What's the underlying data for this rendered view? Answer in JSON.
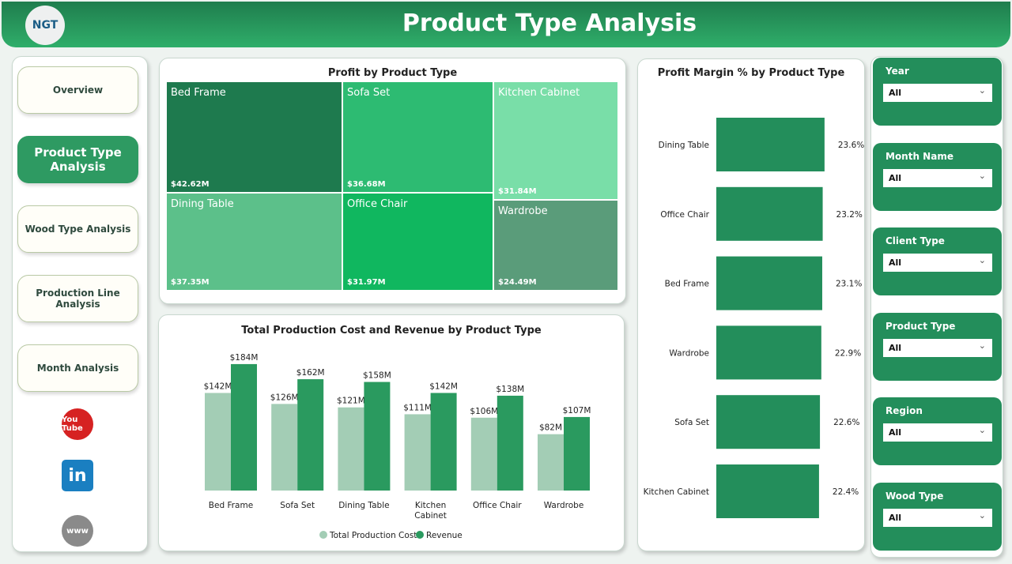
{
  "header": {
    "title": "Product Type Analysis",
    "logo_text": "NGT"
  },
  "nav": [
    {
      "label": "Overview"
    },
    {
      "label": "Product Type Analysis",
      "active": true
    },
    {
      "label": "Wood Type Analysis"
    },
    {
      "label": "Production Line Analysis"
    },
    {
      "label": "Month Analysis"
    }
  ],
  "social": [
    {
      "icon": "youtube-icon",
      "label": "You Tube"
    },
    {
      "icon": "linkedin-icon",
      "label": "in"
    },
    {
      "icon": "www-icon",
      "label": "www"
    }
  ],
  "treemap": {
    "title": "Profit by Product Type",
    "tiles": [
      {
        "name": "Bed Frame",
        "value": "$42.62M",
        "color": "#1e7a4e"
      },
      {
        "name": "Dining Table",
        "value": "$37.35M",
        "color": "#5cc08a"
      },
      {
        "name": "Sofa Set",
        "value": "$36.68M",
        "color": "#2dbb72"
      },
      {
        "name": "Office Chair",
        "value": "$31.97M",
        "color": "#10b75f"
      },
      {
        "name": "Kitchen Cabinet",
        "value": "$31.84M",
        "color": "#79dea8"
      },
      {
        "name": "Wardrobe",
        "value": "$24.49M",
        "color": "#5a9c7a"
      }
    ]
  },
  "chart_data": [
    {
      "type": "bar",
      "title": "Total Production Cost and Revenue by Product Type",
      "categories": [
        "Bed Frame",
        "Sofa Set",
        "Dining Table",
        "Kitchen Cabinet",
        "Office Chair",
        "Wardrobe"
      ],
      "series": [
        {
          "name": "Total Production Cost",
          "values": [
            142,
            126,
            121,
            111,
            106,
            82
          ],
          "labels": [
            "$142M",
            "$126M",
            "$121M",
            "$111M",
            "$106M",
            "$82M"
          ],
          "color": "#a3cdb5"
        },
        {
          "name": "Revenue",
          "values": [
            184,
            162,
            158,
            142,
            138,
            107
          ],
          "labels": [
            "$184M",
            "$162M",
            "$158M",
            "$142M",
            "$138M",
            "$107M"
          ],
          "color": "#2a9a5f"
        }
      ],
      "legend": "bottom",
      "ylim": [
        0,
        200
      ]
    },
    {
      "type": "bar",
      "orientation": "horizontal",
      "title": "Profit Margin % by Product Type",
      "categories": [
        "Dining Table",
        "Office Chair",
        "Bed Frame",
        "Wardrobe",
        "Sofa Set",
        "Kitchen Cabinet"
      ],
      "values": [
        23.6,
        23.2,
        23.1,
        22.9,
        22.6,
        22.4
      ],
      "labels": [
        "23.6%",
        "23.2%",
        "23.1%",
        "22.9%",
        "22.6%",
        "22.4%"
      ],
      "color": "#238e5b",
      "xlim": [
        0,
        23.6
      ]
    }
  ],
  "slicers": [
    {
      "label": "Year",
      "value": "All"
    },
    {
      "label": "Month Name",
      "value": "All"
    },
    {
      "label": "Client Type",
      "value": "All"
    },
    {
      "label": "Product Type",
      "value": "All"
    },
    {
      "label": "Region",
      "value": "All"
    },
    {
      "label": "Wood Type",
      "value": "All"
    }
  ]
}
